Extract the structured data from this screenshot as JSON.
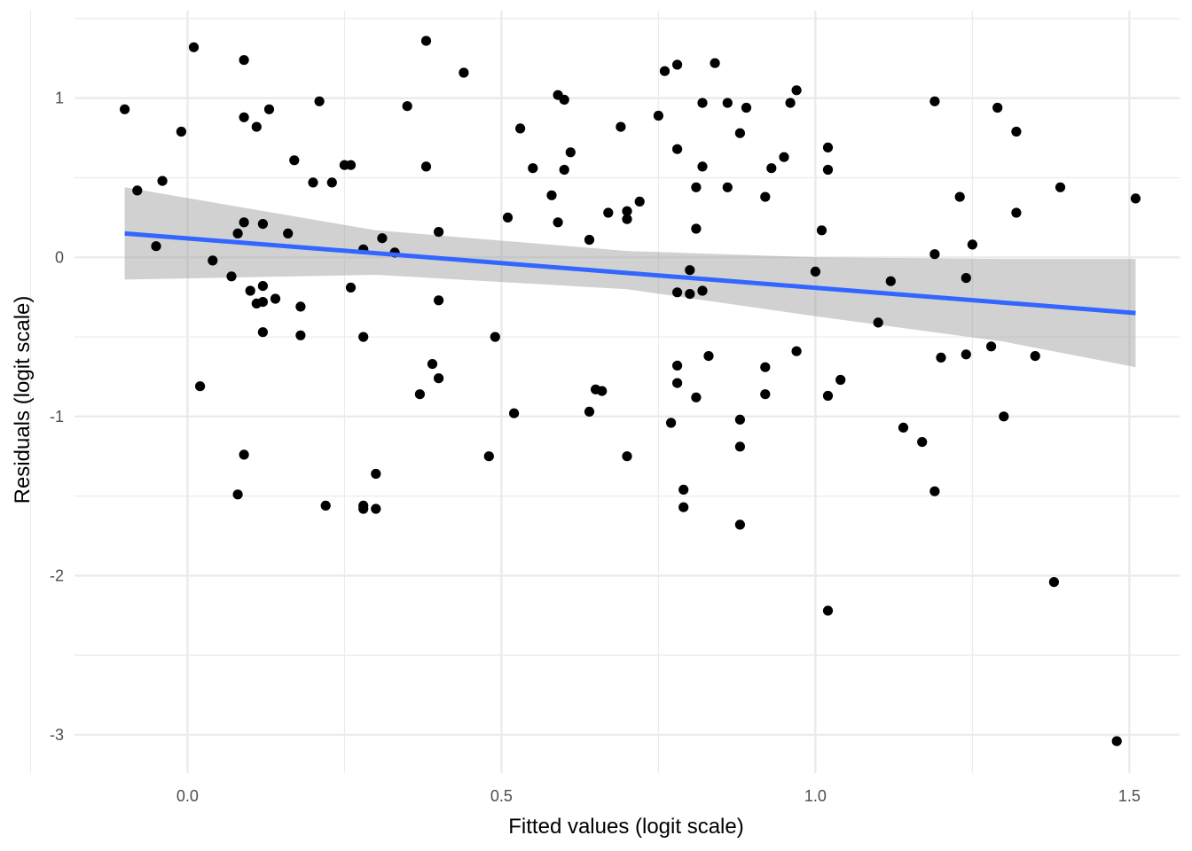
{
  "chart_data": {
    "type": "scatter",
    "xlabel": "Fitted values (logit scale)",
    "ylabel": "Residuals (logit scale)",
    "xlim": [
      -0.18,
      1.58
    ],
    "ylim": [
      -3.24,
      1.55
    ],
    "x_ticks": [
      0.0,
      0.5,
      1.0,
      1.5
    ],
    "x_tick_labels": [
      "0.0",
      "0.5",
      "1.0",
      "1.5"
    ],
    "y_ticks": [
      -3,
      -2,
      -1,
      0,
      1
    ],
    "y_tick_labels": [
      "-3",
      "-2",
      "-1",
      "0",
      "1"
    ],
    "grid": true,
    "colors": {
      "points": "#000000",
      "fit_line": "#3366FF",
      "confidence_band": "#999999",
      "grid": "#ebebeb"
    },
    "fit": {
      "method": "linear",
      "x": [
        -0.1,
        1.51
      ],
      "y": [
        0.15,
        -0.35
      ],
      "band_x": [
        -0.1,
        0.3,
        0.7,
        1.0,
        1.3,
        1.51
      ],
      "band_upper": [
        0.44,
        0.17,
        0.04,
        0.0,
        -0.01,
        -0.01
      ],
      "band_lower": [
        -0.14,
        -0.11,
        -0.2,
        -0.37,
        -0.53,
        -0.69
      ]
    },
    "points": [
      {
        "x": -0.1,
        "y": 0.93
      },
      {
        "x": -0.08,
        "y": 0.42
      },
      {
        "x": -0.05,
        "y": 0.07
      },
      {
        "x": -0.04,
        "y": 0.48
      },
      {
        "x": -0.01,
        "y": 0.79
      },
      {
        "x": 0.01,
        "y": 1.32
      },
      {
        "x": 0.02,
        "y": -0.81
      },
      {
        "x": 0.04,
        "y": -0.02
      },
      {
        "x": 0.07,
        "y": -0.12
      },
      {
        "x": 0.08,
        "y": 0.15
      },
      {
        "x": 0.08,
        "y": -1.49
      },
      {
        "x": 0.09,
        "y": 0.22
      },
      {
        "x": 0.09,
        "y": 1.24
      },
      {
        "x": 0.09,
        "y": 0.88
      },
      {
        "x": 0.09,
        "y": -1.24
      },
      {
        "x": 0.1,
        "y": -0.21
      },
      {
        "x": 0.11,
        "y": 0.82
      },
      {
        "x": 0.11,
        "y": -0.29
      },
      {
        "x": 0.12,
        "y": -0.28
      },
      {
        "x": 0.12,
        "y": -0.18
      },
      {
        "x": 0.12,
        "y": -0.47
      },
      {
        "x": 0.12,
        "y": 0.21
      },
      {
        "x": 0.13,
        "y": 0.93
      },
      {
        "x": 0.14,
        "y": -0.26
      },
      {
        "x": 0.16,
        "y": 0.15
      },
      {
        "x": 0.17,
        "y": 0.61
      },
      {
        "x": 0.18,
        "y": -0.31
      },
      {
        "x": 0.18,
        "y": -0.49
      },
      {
        "x": 0.2,
        "y": 0.47
      },
      {
        "x": 0.21,
        "y": 0.98
      },
      {
        "x": 0.22,
        "y": -1.56
      },
      {
        "x": 0.23,
        "y": 0.47
      },
      {
        "x": 0.25,
        "y": 0.58
      },
      {
        "x": 0.26,
        "y": 0.58
      },
      {
        "x": 0.26,
        "y": -0.19
      },
      {
        "x": 0.28,
        "y": 0.05
      },
      {
        "x": 0.28,
        "y": -1.56
      },
      {
        "x": 0.28,
        "y": -1.58
      },
      {
        "x": 0.28,
        "y": -0.5
      },
      {
        "x": 0.3,
        "y": -1.58
      },
      {
        "x": 0.3,
        "y": -1.36
      },
      {
        "x": 0.31,
        "y": 0.12
      },
      {
        "x": 0.33,
        "y": 0.03
      },
      {
        "x": 0.35,
        "y": 0.95
      },
      {
        "x": 0.37,
        "y": -0.86
      },
      {
        "x": 0.38,
        "y": 1.36
      },
      {
        "x": 0.38,
        "y": 0.57
      },
      {
        "x": 0.39,
        "y": -0.67
      },
      {
        "x": 0.4,
        "y": 0.16
      },
      {
        "x": 0.4,
        "y": -0.27
      },
      {
        "x": 0.4,
        "y": -0.76
      },
      {
        "x": 0.44,
        "y": 1.16
      },
      {
        "x": 0.48,
        "y": -1.25
      },
      {
        "x": 0.49,
        "y": -0.5
      },
      {
        "x": 0.51,
        "y": 0.25
      },
      {
        "x": 0.52,
        "y": -0.98
      },
      {
        "x": 0.53,
        "y": 0.81
      },
      {
        "x": 0.55,
        "y": 0.56
      },
      {
        "x": 0.58,
        "y": 0.39
      },
      {
        "x": 0.59,
        "y": 1.02
      },
      {
        "x": 0.59,
        "y": 0.22
      },
      {
        "x": 0.6,
        "y": 0.99
      },
      {
        "x": 0.6,
        "y": 0.55
      },
      {
        "x": 0.61,
        "y": 0.66
      },
      {
        "x": 0.64,
        "y": 0.11
      },
      {
        "x": 0.64,
        "y": -0.97
      },
      {
        "x": 0.65,
        "y": -0.83
      },
      {
        "x": 0.66,
        "y": -0.84
      },
      {
        "x": 0.67,
        "y": 0.28
      },
      {
        "x": 0.69,
        "y": 0.82
      },
      {
        "x": 0.7,
        "y": 0.29
      },
      {
        "x": 0.7,
        "y": 0.24
      },
      {
        "x": 0.7,
        "y": -1.25
      },
      {
        "x": 0.72,
        "y": 0.35
      },
      {
        "x": 0.75,
        "y": 0.89
      },
      {
        "x": 0.76,
        "y": 1.17
      },
      {
        "x": 0.77,
        "y": -1.04
      },
      {
        "x": 0.78,
        "y": -0.22
      },
      {
        "x": 0.78,
        "y": 0.68
      },
      {
        "x": 0.78,
        "y": 1.21
      },
      {
        "x": 0.78,
        "y": -0.79
      },
      {
        "x": 0.78,
        "y": -0.68
      },
      {
        "x": 0.79,
        "y": -1.57
      },
      {
        "x": 0.79,
        "y": -1.46
      },
      {
        "x": 0.8,
        "y": -0.23
      },
      {
        "x": 0.8,
        "y": -0.08
      },
      {
        "x": 0.81,
        "y": 0.44
      },
      {
        "x": 0.81,
        "y": 0.18
      },
      {
        "x": 0.81,
        "y": -0.88
      },
      {
        "x": 0.82,
        "y": 0.97
      },
      {
        "x": 0.82,
        "y": 0.57
      },
      {
        "x": 0.82,
        "y": -0.21
      },
      {
        "x": 0.83,
        "y": -0.62
      },
      {
        "x": 0.84,
        "y": 1.22
      },
      {
        "x": 0.86,
        "y": 0.97
      },
      {
        "x": 0.86,
        "y": 0.44
      },
      {
        "x": 0.88,
        "y": -1.68
      },
      {
        "x": 0.88,
        "y": 0.78
      },
      {
        "x": 0.88,
        "y": -1.02
      },
      {
        "x": 0.88,
        "y": -1.19
      },
      {
        "x": 0.89,
        "y": 0.94
      },
      {
        "x": 0.92,
        "y": 0.38
      },
      {
        "x": 0.92,
        "y": -0.69
      },
      {
        "x": 0.92,
        "y": -0.86
      },
      {
        "x": 0.93,
        "y": 0.56
      },
      {
        "x": 0.95,
        "y": 0.63
      },
      {
        "x": 0.96,
        "y": 0.97
      },
      {
        "x": 0.97,
        "y": 1.05
      },
      {
        "x": 0.97,
        "y": -0.59
      },
      {
        "x": 1.0,
        "y": -0.09
      },
      {
        "x": 1.01,
        "y": 0.17
      },
      {
        "x": 1.02,
        "y": -0.87
      },
      {
        "x": 1.02,
        "y": -2.22
      },
      {
        "x": 1.02,
        "y": 0.69
      },
      {
        "x": 1.02,
        "y": 0.55
      },
      {
        "x": 1.04,
        "y": -0.77
      },
      {
        "x": 1.1,
        "y": -0.41
      },
      {
        "x": 1.12,
        "y": -0.15
      },
      {
        "x": 1.14,
        "y": -1.07
      },
      {
        "x": 1.17,
        "y": -1.16
      },
      {
        "x": 1.19,
        "y": 0.98
      },
      {
        "x": 1.19,
        "y": 0.02
      },
      {
        "x": 1.19,
        "y": -1.47
      },
      {
        "x": 1.2,
        "y": -0.63
      },
      {
        "x": 1.23,
        "y": 0.38
      },
      {
        "x": 1.24,
        "y": -0.13
      },
      {
        "x": 1.24,
        "y": -0.61
      },
      {
        "x": 1.25,
        "y": 0.08
      },
      {
        "x": 1.28,
        "y": -0.56
      },
      {
        "x": 1.29,
        "y": 0.94
      },
      {
        "x": 1.3,
        "y": -1.0
      },
      {
        "x": 1.32,
        "y": 0.79
      },
      {
        "x": 1.32,
        "y": 0.28
      },
      {
        "x": 1.35,
        "y": -0.62
      },
      {
        "x": 1.38,
        "y": -2.04
      },
      {
        "x": 1.39,
        "y": 0.44
      },
      {
        "x": 1.48,
        "y": -3.04
      },
      {
        "x": 1.51,
        "y": 0.37
      }
    ]
  }
}
